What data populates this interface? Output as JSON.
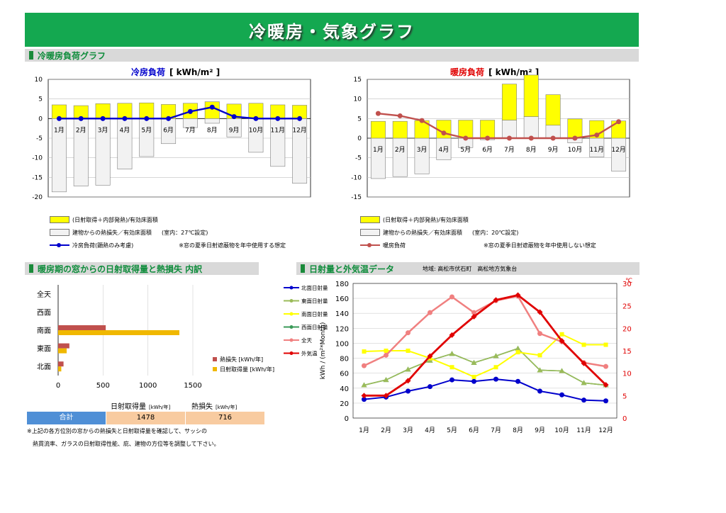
{
  "page_title": "冷暖房・気象グラフ",
  "sections": {
    "load": "冷暖房負荷グラフ",
    "window": "暖房期の窓からの日射取得量と熱損失 内訳",
    "weather": "日射量と外気温データ",
    "weather_location": "地域: 高松市伏石町　高松地方気象台"
  },
  "months": [
    "1月",
    "2月",
    "3月",
    "4月",
    "5月",
    "6月",
    "7月",
    "8月",
    "9月",
    "10月",
    "11月",
    "12月"
  ],
  "colors": {
    "yellow": "#ffff00",
    "gray": "#f2f2f2",
    "blue": "#0000cc",
    "red": "#c0504d",
    "heat_loss": "#c0504d",
    "solar": "#f0b800",
    "green": "#14a850"
  },
  "cooling_legend": {
    "gain": "(日射取得＋内部発熱)/有効床面積",
    "loss": "建物からの熱損失／有効床面積",
    "loss_cond": "(室内：27℃設定)",
    "line": "冷房負荷(顕熱のみ考慮)",
    "note": "※窓の夏季日射遮蔽物を年中使用する想定"
  },
  "heating_legend": {
    "gain": "(日射取得＋内部発熱)/有効床面積",
    "loss": "建物からの熱損失／有効床面積",
    "loss_cond": "(室内：20℃設定)",
    "line": "暖房負荷",
    "note": "※窓の夏季日射遮蔽物を年中使用しない想定"
  },
  "window_legend": {
    "heat_loss": "熱損失 [kWh/年]",
    "solar": "日射取得量 [kWh/年]"
  },
  "totals": {
    "label": "合計",
    "solar_header": "日射取得量",
    "solar_unit": "[kWh/年]",
    "loss_header": "熱損失",
    "loss_unit": "[kWh/年]",
    "solar_value": "1478",
    "loss_value": "716"
  },
  "footnote": {
    "line1": "※上記の各方位別の窓からの熱損失と日射取得量を確認して、サッシの",
    "line2": "熱貫流率、ガラスの日射取得性能、庇、建物の方位等を調整して下さい。"
  },
  "weather_legend": [
    "北面日射量",
    "東面日射量",
    "南面日射量",
    "西面日射量",
    "全天",
    "外気温"
  ],
  "chart_data": [
    {
      "type": "bar",
      "title": "冷房負荷",
      "unit": "[ kWh/m² ]",
      "categories": [
        "1月",
        "2月",
        "3月",
        "4月",
        "5月",
        "6月",
        "7月",
        "8月",
        "9月",
        "10月",
        "11月",
        "12月"
      ],
      "ylim": [
        -20,
        10
      ],
      "yticks": [
        10,
        5,
        0,
        -5,
        -10,
        -15,
        -20
      ],
      "series": [
        {
          "name": "(日射取得＋内部発熱)/有効床面積",
          "values": [
            3.5,
            3.3,
            3.8,
            3.9,
            4.0,
            3.6,
            3.9,
            4.3,
            3.7,
            3.9,
            3.5,
            3.4
          ]
        },
        {
          "name": "建物からの熱損失／有効床面積",
          "values": [
            -18.7,
            -17.2,
            -17.0,
            -12.9,
            -9.7,
            -6.4,
            -2.3,
            -1.2,
            -4.7,
            -8.6,
            -12.2,
            -16.5
          ]
        },
        {
          "name": "冷房負荷(顕熱のみ考慮)",
          "type": "line",
          "values": [
            0,
            0,
            0,
            0,
            0,
            0,
            1.8,
            2.9,
            0.5,
            0,
            0,
            0
          ]
        }
      ]
    },
    {
      "type": "bar",
      "title": "暖房負荷",
      "unit": "[ kWh/m² ]",
      "categories": [
        "1月",
        "2月",
        "3月",
        "4月",
        "5月",
        "6月",
        "7月",
        "8月",
        "9月",
        "10月",
        "11月",
        "12月"
      ],
      "ylim": [
        -15,
        15
      ],
      "yticks": [
        15,
        10,
        5,
        0,
        -5,
        -10,
        -15
      ],
      "series": [
        {
          "name": "(日射取得＋内部発熱)/有効床面積",
          "values": [
            4.3,
            4.3,
            4.5,
            4.6,
            4.6,
            4.6,
            9.2,
            10.6,
            7.8,
            4.9,
            4.5,
            4.4
          ]
        },
        {
          "name": "建物からの熱損失／有効床面積",
          "values": [
            -10.3,
            -9.8,
            -9.1,
            -5.5,
            -2.4,
            -0.4,
            4.6,
            5.5,
            3.3,
            -1.2,
            -4.8,
            -8.4
          ]
        },
        {
          "name": "暖房負荷",
          "type": "line",
          "values": [
            6.3,
            5.7,
            4.5,
            1.3,
            0,
            0,
            0,
            0,
            0,
            0,
            0.8,
            4.2
          ]
        }
      ]
    },
    {
      "type": "bar",
      "orientation": "horizontal",
      "categories": [
        "全天",
        "西面",
        "南面",
        "東面",
        "北面"
      ],
      "xlim": [
        0,
        1500
      ],
      "xticks": [
        0,
        500,
        1000,
        1500
      ],
      "series": [
        {
          "name": "熱損失 [kWh/年]",
          "values": [
            0,
            0,
            530,
            125,
            60
          ]
        },
        {
          "name": "日射取得量 [kWh/年]",
          "values": [
            0,
            0,
            1350,
            95,
            35
          ]
        }
      ]
    },
    {
      "type": "line",
      "categories": [
        "1月",
        "2月",
        "3月",
        "4月",
        "5月",
        "6月",
        "7月",
        "8月",
        "9月",
        "10月",
        "11月",
        "12月"
      ],
      "ylabel": "kWh / (m²*Month)",
      "ylim": [
        0,
        180
      ],
      "y2label": "℃",
      "y2lim": [
        0,
        30
      ],
      "series": [
        {
          "name": "北面日射量",
          "axis": "left",
          "values": [
            25,
            28,
            36,
            42,
            51,
            49,
            52,
            49,
            36,
            31,
            24,
            23
          ]
        },
        {
          "name": "東面日射量",
          "axis": "left",
          "values": [
            44,
            51,
            65,
            77,
            86,
            74,
            83,
            93,
            64,
            63,
            47,
            44
          ]
        },
        {
          "name": "南面日射量",
          "axis": "left",
          "values": [
            89,
            90,
            90,
            80,
            68,
            55,
            68,
            88,
            84,
            112,
            98,
            98
          ]
        },
        {
          "name": "西面日射量",
          "axis": "left",
          "values": [
            44,
            51,
            65,
            77,
            86,
            74,
            83,
            93,
            64,
            63,
            47,
            44
          ]
        },
        {
          "name": "全天",
          "axis": "left",
          "values": [
            70,
            84,
            114,
            141,
            162,
            141,
            157,
            163,
            113,
            102,
            74,
            69
          ]
        },
        {
          "name": "外気温",
          "axis": "right",
          "values": [
            5.0,
            5.0,
            8.3,
            13.8,
            18.5,
            22.6,
            26.3,
            27.4,
            23.6,
            17.2,
            12.2,
            7.4
          ]
        }
      ]
    }
  ]
}
